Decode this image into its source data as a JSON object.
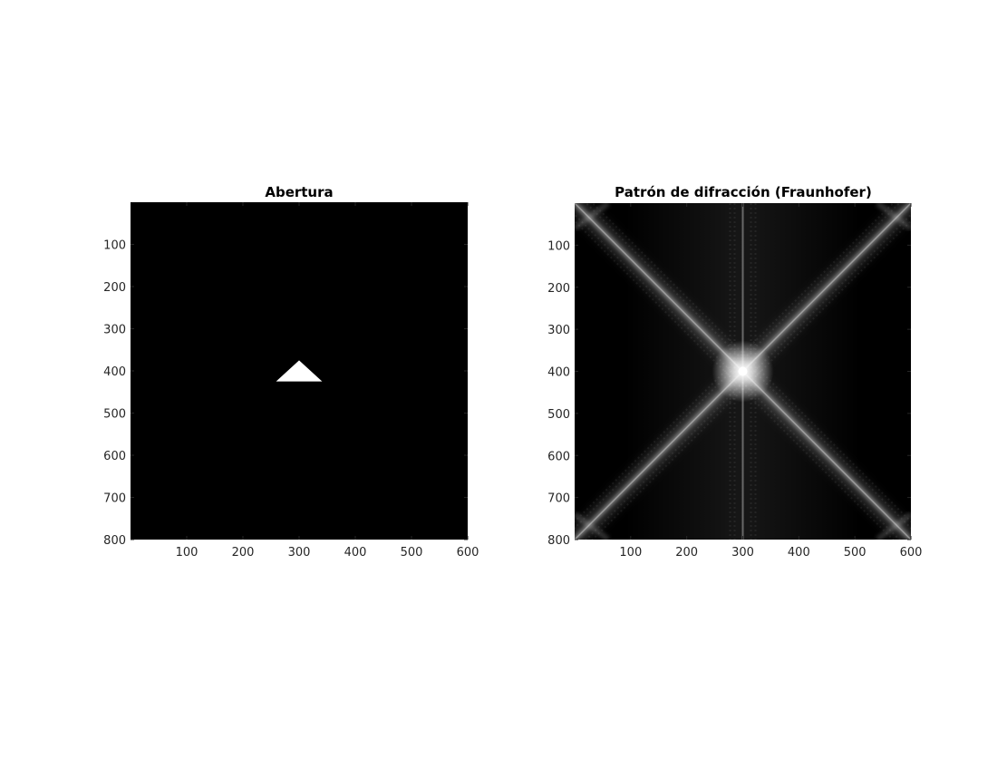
{
  "chart_data": [
    {
      "type": "heatmap",
      "title": "Abertura",
      "xlim": [
        0,
        600
      ],
      "ylim": [
        800,
        0
      ],
      "x_ticks": [
        100,
        200,
        300,
        400,
        500,
        600
      ],
      "y_ticks": [
        100,
        200,
        300,
        400,
        500,
        600,
        700,
        800
      ],
      "colormap": "gray",
      "background_value": 0,
      "aperture": {
        "shape": "triangle",
        "value": 1,
        "vertices": [
          [
            300,
            375
          ],
          [
            259,
            425
          ],
          [
            341,
            425
          ]
        ]
      }
    },
    {
      "type": "heatmap",
      "title": "Patrón de difracción (Fraunhofer)",
      "xlim": [
        0,
        600
      ],
      "ylim": [
        800,
        0
      ],
      "x_ticks": [
        100,
        200,
        300,
        400,
        500,
        600
      ],
      "y_ticks": [
        100,
        200,
        300,
        400,
        500,
        600,
        700,
        800
      ],
      "colormap": "gray",
      "center": [
        300,
        400
      ],
      "peak_value": 1,
      "streaks": [
        {
          "direction": "vertical",
          "through": [
            300,
            400
          ]
        },
        {
          "direction": "diagonal",
          "from": [
            0,
            0
          ],
          "to": [
            600,
            800
          ]
        },
        {
          "direction": "diagonal",
          "from": [
            600,
            0
          ],
          "to": [
            0,
            800
          ]
        }
      ]
    }
  ]
}
